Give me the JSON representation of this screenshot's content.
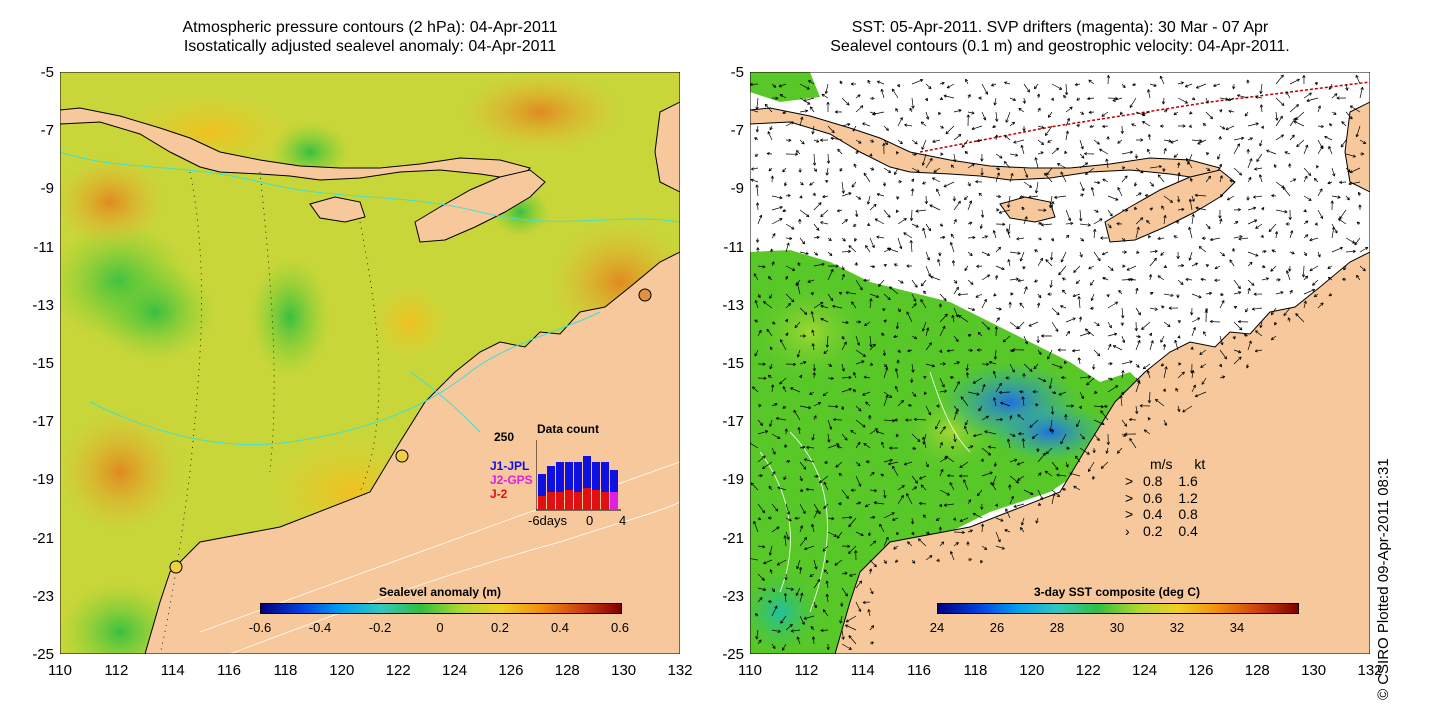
{
  "left_panel": {
    "title_line1": "Atmospheric pressure contours (2 hPa): 04-Apr-2011",
    "title_line2": "Isostatically adjusted sealevel anomaly: 04-Apr-2011",
    "colorbar_title": "Sealevel anomaly (m)",
    "colorbar_ticks": [
      "-0.6",
      "-0.4",
      "-0.2",
      "0",
      "0.2",
      "0.4",
      "0.6"
    ],
    "data_count": {
      "title": "Data count",
      "max": "250",
      "missions": [
        "J1-JPL",
        "J2-GPS",
        "J-2"
      ],
      "mission_colors": [
        "#1010e0",
        "#e020e0",
        "#e01010"
      ],
      "x_ticks": [
        "-6days",
        "0",
        "4"
      ]
    }
  },
  "right_panel": {
    "title_line1": "SST: 05-Apr-2011. SVP drifters (magenta): 30 Mar - 07 Apr",
    "title_line2": "Sealevel contours (0.1 m) and geostrophic velocity: 04-Apr-2011.",
    "colorbar_title": "3-day SST composite (deg C)",
    "colorbar_ticks": [
      "24",
      "26",
      "28",
      "30",
      "32",
      "34"
    ],
    "velocity_legend": {
      "header_ms": "m/s",
      "header_kt": "kt",
      "rows": [
        {
          "ms": "0.8",
          "kt": "1.6"
        },
        {
          "ms": "0.6",
          "kt": "1.2"
        },
        {
          "ms": "0.4",
          "kt": "0.8"
        },
        {
          "ms": "0.2",
          "kt": "0.4"
        }
      ]
    }
  },
  "axes": {
    "y_ticks": [
      "-5",
      "-7",
      "-9",
      "-11",
      "-13",
      "-15",
      "-17",
      "-19",
      "-21",
      "-23",
      "-25"
    ],
    "x_ticks": [
      "110",
      "112",
      "114",
      "116",
      "118",
      "120",
      "122",
      "124",
      "126",
      "128",
      "130",
      "132"
    ]
  },
  "credit": "© CSIRO Plotted 09-Apr-2011 08:31",
  "colors": {
    "land": "#f6c89c",
    "sea_anomaly_base": "#d8d838",
    "sst_base": "#58c828",
    "cloud": "#ffffff"
  }
}
